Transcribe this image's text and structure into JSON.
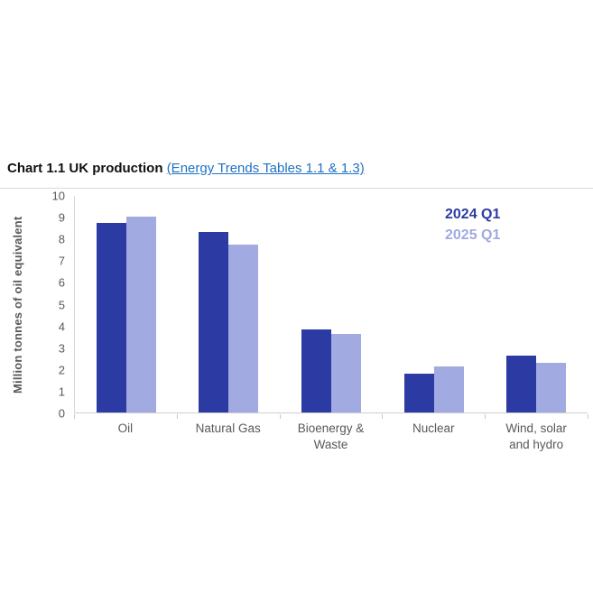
{
  "header": {
    "title": "Chart 1.1 UK production",
    "separator": " ",
    "link_text": "(Energy Trends Tables 1.1 & 1.3)",
    "link_color": "#1F72C2"
  },
  "chart_data": {
    "type": "bar",
    "title": "Chart 1.1 UK production",
    "categories": [
      "Oil",
      "Natural Gas",
      "Bioenergy & Waste",
      "Nuclear",
      "Wind, solar and hydro"
    ],
    "series": [
      {
        "name": "2024 Q1",
        "color": "#2C3BA4",
        "values": [
          8.7,
          8.3,
          3.8,
          1.8,
          2.6
        ]
      },
      {
        "name": "2025 Q1",
        "color": "#A1AAE1",
        "values": [
          9.0,
          7.7,
          3.6,
          2.1,
          2.3
        ]
      }
    ],
    "xlabel": "",
    "ylabel": "Million tonnes of oil equivalent",
    "ylim": [
      0,
      10
    ],
    "ytick_step": 1,
    "grid": false,
    "legend_position": "top-right",
    "axis_color": "#d6d6d6",
    "tick_text_color": "#595959"
  }
}
